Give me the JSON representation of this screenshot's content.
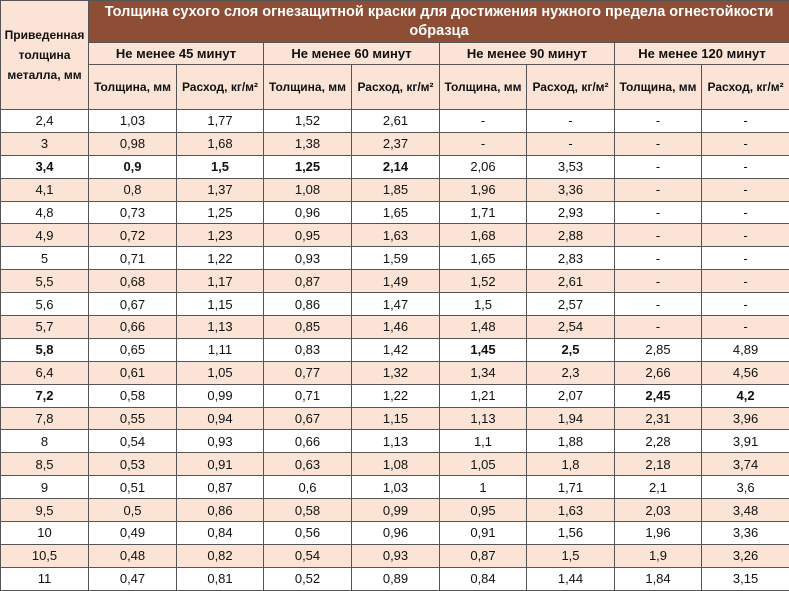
{
  "header": {
    "title": "Толщина сухого слоя огнезащитной краски для достижения нужного предела огнестойкости образца",
    "corner_label": "Приведенная толщина металла, мм",
    "groups": [
      "Не менее 45 минут",
      "Не менее 60 минут",
      "Не менее 90 минут",
      "Не менее 120 минут"
    ],
    "subcols": [
      "Толщина, мм",
      "Расход, кг/м²"
    ]
  },
  "rows": [
    {
      "cells": [
        "2,4",
        "1,03",
        "1,77",
        "1,52",
        "2,61",
        "-",
        "-",
        "-",
        "-"
      ],
      "bold": []
    },
    {
      "cells": [
        "3",
        "0,98",
        "1,68",
        "1,38",
        "2,37",
        "-",
        "-",
        "-",
        "-"
      ],
      "bold": []
    },
    {
      "cells": [
        "3,4",
        "0,9",
        "1,5",
        "1,25",
        "2,14",
        "2,06",
        "3,53",
        "-",
        "-"
      ],
      "bold": [
        0,
        1,
        2,
        3,
        4
      ]
    },
    {
      "cells": [
        "4,1",
        "0,8",
        "1,37",
        "1,08",
        "1,85",
        "1,96",
        "3,36",
        "-",
        "-"
      ],
      "bold": []
    },
    {
      "cells": [
        "4,8",
        "0,73",
        "1,25",
        "0,96",
        "1,65",
        "1,71",
        "2,93",
        "-",
        "-"
      ],
      "bold": []
    },
    {
      "cells": [
        "4,9",
        "0,72",
        "1,23",
        "0,95",
        "1,63",
        "1,68",
        "2,88",
        "-",
        "-"
      ],
      "bold": []
    },
    {
      "cells": [
        "5",
        "0,71",
        "1,22",
        "0,93",
        "1,59",
        "1,65",
        "2,83",
        "-",
        "-"
      ],
      "bold": []
    },
    {
      "cells": [
        "5,5",
        "0,68",
        "1,17",
        "0,87",
        "1,49",
        "1,52",
        "2,61",
        "-",
        "-"
      ],
      "bold": []
    },
    {
      "cells": [
        "5,6",
        "0,67",
        "1,15",
        "0,86",
        "1,47",
        "1,5",
        "2,57",
        "-",
        "-"
      ],
      "bold": []
    },
    {
      "cells": [
        "5,7",
        "0,66",
        "1,13",
        "0,85",
        "1,46",
        "1,48",
        "2,54",
        "-",
        "-"
      ],
      "bold": []
    },
    {
      "cells": [
        "5,8",
        "0,65",
        "1,11",
        "0,83",
        "1,42",
        "1,45",
        "2,5",
        "2,85",
        "4,89"
      ],
      "bold": [
        0,
        5,
        6
      ]
    },
    {
      "cells": [
        "6,4",
        "0,61",
        "1,05",
        "0,77",
        "1,32",
        "1,34",
        "2,3",
        "2,66",
        "4,56"
      ],
      "bold": []
    },
    {
      "cells": [
        "7,2",
        "0,58",
        "0,99",
        "0,71",
        "1,22",
        "1,21",
        "2,07",
        "2,45",
        "4,2"
      ],
      "bold": [
        0,
        7,
        8
      ]
    },
    {
      "cells": [
        "7,8",
        "0,55",
        "0,94",
        "0,67",
        "1,15",
        "1,13",
        "1,94",
        "2,31",
        "3,96"
      ],
      "bold": []
    },
    {
      "cells": [
        "8",
        "0,54",
        "0,93",
        "0,66",
        "1,13",
        "1,1",
        "1,88",
        "2,28",
        "3,91"
      ],
      "bold": []
    },
    {
      "cells": [
        "8,5",
        "0,53",
        "0,91",
        "0,63",
        "1,08",
        "1,05",
        "1,8",
        "2,18",
        "3,74"
      ],
      "bold": []
    },
    {
      "cells": [
        "9",
        "0,51",
        "0,87",
        "0,6",
        "1,03",
        "1",
        "1,71",
        "2,1",
        "3,6"
      ],
      "bold": []
    },
    {
      "cells": [
        "9,5",
        "0,5",
        "0,86",
        "0,58",
        "0,99",
        "0,95",
        "1,63",
        "2,03",
        "3,48"
      ],
      "bold": []
    },
    {
      "cells": [
        "10",
        "0,49",
        "0,84",
        "0,56",
        "0,96",
        "0,91",
        "1,56",
        "1,96",
        "3,36"
      ],
      "bold": []
    },
    {
      "cells": [
        "10,5",
        "0,48",
        "0,82",
        "0,54",
        "0,93",
        "0,87",
        "1,5",
        "1,9",
        "3,26"
      ],
      "bold": []
    },
    {
      "cells": [
        "11",
        "0,47",
        "0,81",
        "0,52",
        "0,89",
        "0,84",
        "1,44",
        "1,84",
        "3,15"
      ],
      "bold": []
    }
  ]
}
